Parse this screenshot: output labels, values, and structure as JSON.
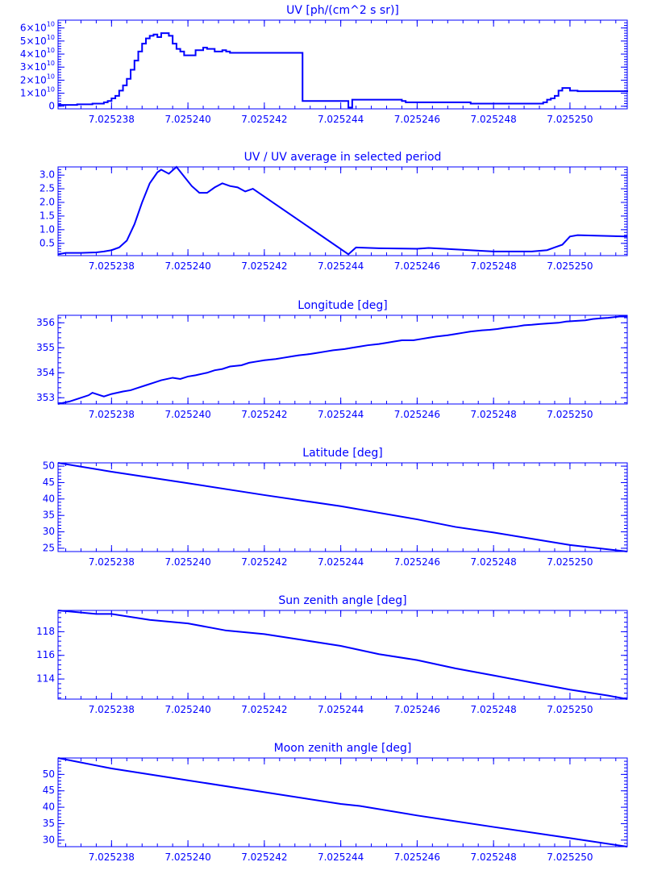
{
  "colors": {
    "line": "#0000ff",
    "background": "#ffffff"
  },
  "chart_data": [
    {
      "type": "line",
      "title": "UV [ph/(cm^2 s sr)]",
      "step": true,
      "xlim": [
        7.0252366,
        7.0252515
      ],
      "ylim": [
        -2000000000.0,
        66000000000.0
      ],
      "xticks": [
        7.025238,
        7.02524,
        7.025242,
        7.025244,
        7.025246,
        7.025248,
        7.02525
      ],
      "xtick_labels": [
        "7.025238",
        "7.025240",
        "7.025242",
        "7.025244",
        "7.025246",
        "7.025248",
        "7.025250"
      ],
      "yticks": [
        0,
        10000000000.0,
        20000000000.0,
        30000000000.0,
        40000000000.0,
        50000000000.0,
        60000000000.0
      ],
      "ytick_labels": [
        "0",
        "1×10¹⁰",
        "2×10¹⁰",
        "3×10¹⁰",
        "4×10¹⁰",
        "5×10¹⁰",
        "6×10¹⁰"
      ],
      "grid": false,
      "series": [
        {
          "x": [
            7.0252366,
            7.0252371,
            7.0252375,
            7.0252378,
            7.0252379,
            7.025238,
            7.0252381,
            7.0252382,
            7.0252383,
            7.0252384,
            7.0252385,
            7.0252386,
            7.0252387,
            7.0252388,
            7.0252389,
            7.025239,
            7.0252391,
            7.0252392,
            7.0252393,
            7.0252394,
            7.0252395,
            7.0252396,
            7.0252397,
            7.0252398,
            7.0252399,
            7.02524,
            7.0252401,
            7.0252402,
            7.0252403,
            7.0252404,
            7.0252405,
            7.0252407,
            7.0252409,
            7.025241,
            7.0252411,
            7.0252412,
            7.0252413,
            7.0252414,
            7.0252415,
            7.0252417,
            7.025243,
            7.0252442,
            7.0252443,
            7.0252456,
            7.0252457,
            7.0252474,
            7.0252491,
            7.0252493,
            7.0252494,
            7.0252495,
            7.0252496,
            7.0252497,
            7.0252498,
            7.02525,
            7.0252502,
            7.0252515
          ],
          "y": [
            1000000000.0,
            1500000000.0,
            2000000000.0,
            3000000000.0,
            4000000000.0,
            6000000000.0,
            8000000000.0,
            12000000000.0,
            16000000000.0,
            21000000000.0,
            28000000000.0,
            35000000000.0,
            42000000000.0,
            48000000000.0,
            52000000000.0,
            54000000000.0,
            55000000000.0,
            53000000000.0,
            56000000000.0,
            56000000000.0,
            54000000000.0,
            48000000000.0,
            44000000000.0,
            42000000000.0,
            39000000000.0,
            39000000000.0,
            39000000000.0,
            43000000000.0,
            43000000000.0,
            45000000000.0,
            44000000000.0,
            42000000000.0,
            43000000000.0,
            42000000000.0,
            41000000000.0,
            41000000000.0,
            41000000000.0,
            41000000000.0,
            41000000000.0,
            41000000000.0,
            4000000000.0,
            -1000000000.0,
            5000000000.0,
            4000000000.0,
            3000000000.0,
            2000000000.0,
            2000000000.0,
            3000000000.0,
            5000000000.0,
            6000000000.0,
            8000000000.0,
            12000000000.0,
            14000000000.0,
            12000000000.0,
            11500000000.0,
            11000000000.0
          ]
        }
      ]
    },
    {
      "type": "line",
      "title": "UV / UV average in selected period",
      "step": false,
      "xlim": [
        7.0252366,
        7.0252515
      ],
      "ylim": [
        0.05,
        3.3
      ],
      "xticks": [
        7.025238,
        7.02524,
        7.025242,
        7.025244,
        7.025246,
        7.025248,
        7.02525
      ],
      "xtick_labels": [
        "7.025238",
        "7.025240",
        "7.025242",
        "7.025244",
        "7.025246",
        "7.025248",
        "7.025250"
      ],
      "yticks": [
        0.5,
        1.0,
        1.5,
        2.0,
        2.5,
        3.0
      ],
      "ytick_labels": [
        "0.5",
        "1.0",
        "1.5",
        "2.0",
        "2.5",
        "3.0"
      ],
      "grid": false,
      "series": [
        {
          "x": [
            7.0252366,
            7.0252368,
            7.0252372,
            7.0252376,
            7.0252378,
            7.025238,
            7.0252382,
            7.0252384,
            7.0252386,
            7.0252388,
            7.025239,
            7.0252392,
            7.0252393,
            7.0252395,
            7.0252397,
            7.0252399,
            7.0252401,
            7.0252403,
            7.0252405,
            7.0252407,
            7.0252409,
            7.0252411,
            7.0252413,
            7.0252415,
            7.0252417,
            7.0252442,
            7.0252444,
            7.025245,
            7.025246,
            7.0252463,
            7.0252467,
            7.025248,
            7.025249,
            7.0252494,
            7.0252496,
            7.0252498,
            7.02525,
            7.0252502,
            7.0252515
          ],
          "y": [
            0.1,
            0.15,
            0.15,
            0.17,
            0.2,
            0.25,
            0.35,
            0.6,
            1.2,
            2.0,
            2.7,
            3.1,
            3.2,
            3.05,
            3.3,
            2.95,
            2.6,
            2.35,
            2.35,
            2.55,
            2.7,
            2.6,
            2.55,
            2.4,
            2.5,
            0.1,
            0.35,
            0.32,
            0.3,
            0.33,
            0.3,
            0.2,
            0.2,
            0.25,
            0.35,
            0.45,
            0.75,
            0.8,
            0.75
          ]
        }
      ]
    },
    {
      "type": "line",
      "title": "Longitude [deg]",
      "step": false,
      "xlim": [
        7.0252366,
        7.0252515
      ],
      "ylim": [
        352.75,
        356.3
      ],
      "xticks": [
        7.025238,
        7.02524,
        7.025242,
        7.025244,
        7.025246,
        7.025248,
        7.02525
      ],
      "xtick_labels": [
        "7.025238",
        "7.025240",
        "7.025242",
        "7.025244",
        "7.025246",
        "7.025248",
        "7.025250"
      ],
      "yticks": [
        353,
        354,
        355,
        356
      ],
      "ytick_labels": [
        "353",
        "354",
        "355",
        "356"
      ],
      "grid": false,
      "series": [
        {
          "x": [
            7.0252366,
            7.0252369,
            7.0252371,
            7.0252374,
            7.0252375,
            7.0252378,
            7.025238,
            7.0252383,
            7.0252385,
            7.0252387,
            7.0252389,
            7.0252391,
            7.0252393,
            7.0252396,
            7.0252398,
            7.02524,
            7.0252402,
            7.0252405,
            7.0252407,
            7.0252409,
            7.0252411,
            7.0252414,
            7.0252416,
            7.0252418,
            7.025242,
            7.0252423,
            7.0252425,
            7.0252427,
            7.0252429,
            7.0252432,
            7.0252434,
            7.0252436,
            7.0252438,
            7.0252441,
            7.0252443,
            7.0252445,
            7.0252447,
            7.025245,
            7.0252452,
            7.0252454,
            7.0252456,
            7.0252459,
            7.0252461,
            7.0252463,
            7.0252465,
            7.0252468,
            7.025247,
            7.0252472,
            7.0252474,
            7.0252477,
            7.0252479,
            7.0252481,
            7.0252483,
            7.0252486,
            7.0252488,
            7.025249,
            7.0252492,
            7.0252495,
            7.0252497,
            7.0252499,
            7.0252501,
            7.0252504,
            7.0252506,
            7.0252508,
            7.025251,
            7.0252513,
            7.0252515
          ],
          "y": [
            352.75,
            352.85,
            352.95,
            353.1,
            353.2,
            353.05,
            353.15,
            353.25,
            353.3,
            353.4,
            353.5,
            353.6,
            353.7,
            353.8,
            353.75,
            353.85,
            353.9,
            354.0,
            354.1,
            354.15,
            354.25,
            354.3,
            354.4,
            354.45,
            354.5,
            354.55,
            354.6,
            354.65,
            354.7,
            354.75,
            354.8,
            354.85,
            354.9,
            354.95,
            355.0,
            355.05,
            355.1,
            355.15,
            355.2,
            355.25,
            355.3,
            355.3,
            355.35,
            355.4,
            355.45,
            355.5,
            355.55,
            355.6,
            355.65,
            355.7,
            355.72,
            355.75,
            355.8,
            355.85,
            355.9,
            355.92,
            355.95,
            355.98,
            356.0,
            356.05,
            356.07,
            356.1,
            356.15,
            356.18,
            356.2,
            356.25,
            356.25
          ]
        }
      ]
    },
    {
      "type": "line",
      "title": "Latitude [deg]",
      "step": false,
      "xlim": [
        7.0252366,
        7.0252515
      ],
      "ylim": [
        24,
        51
      ],
      "xticks": [
        7.025238,
        7.02524,
        7.025242,
        7.025244,
        7.025246,
        7.025248,
        7.02525
      ],
      "xtick_labels": [
        "7.025238",
        "7.025240",
        "7.025242",
        "7.025244",
        "7.025246",
        "7.025248",
        "7.025250"
      ],
      "yticks": [
        25,
        30,
        35,
        40,
        45,
        50
      ],
      "ytick_labels": [
        "25",
        "30",
        "35",
        "40",
        "45",
        "50"
      ],
      "grid": false,
      "series": [
        {
          "x": [
            7.0252366,
            7.025238,
            7.02524,
            7.025242,
            7.025244,
            7.025245,
            7.025246,
            7.025247,
            7.025248,
            7.025249,
            7.02525,
            7.0252515
          ],
          "y": [
            51.0,
            48.3,
            44.8,
            41.2,
            37.8,
            35.8,
            33.8,
            31.5,
            29.8,
            27.9,
            26.0,
            24.0
          ]
        }
      ]
    },
    {
      "type": "line",
      "title": "Sun zenith angle [deg]",
      "step": false,
      "xlim": [
        7.0252366,
        7.0252515
      ],
      "ylim": [
        112.3,
        119.8
      ],
      "xticks": [
        7.025238,
        7.02524,
        7.025242,
        7.025244,
        7.025246,
        7.025248,
        7.02525
      ],
      "xtick_labels": [
        "7.025238",
        "7.025240",
        "7.025242",
        "7.025244",
        "7.025246",
        "7.025248",
        "7.025250"
      ],
      "yticks": [
        114,
        116,
        118
      ],
      "ytick_labels": [
        "114",
        "116",
        "118"
      ],
      "grid": false,
      "series": [
        {
          "x": [
            7.0252366,
            7.0252376,
            7.025238,
            7.025239,
            7.02524,
            7.025241,
            7.025242,
            7.025243,
            7.025244,
            7.025245,
            7.025246,
            7.025247,
            7.025248,
            7.025249,
            7.02525,
            7.025251,
            7.0252515
          ],
          "y": [
            119.8,
            119.5,
            119.5,
            119.0,
            118.7,
            118.1,
            117.8,
            117.3,
            116.8,
            116.1,
            115.6,
            114.9,
            114.3,
            113.7,
            113.1,
            112.6,
            112.3
          ]
        }
      ]
    },
    {
      "type": "line",
      "title": "Moon zenith angle [deg]",
      "step": false,
      "xlim": [
        7.0252366,
        7.0252515
      ],
      "ylim": [
        28,
        55
      ],
      "xticks": [
        7.025238,
        7.02524,
        7.025242,
        7.025244,
        7.025246,
        7.025248,
        7.02525
      ],
      "xtick_labels": [
        "7.025238",
        "7.025240",
        "7.025242",
        "7.025244",
        "7.025246",
        "7.025248",
        "7.025250"
      ],
      "yticks": [
        30,
        35,
        40,
        45,
        50
      ],
      "ytick_labels": [
        "30",
        "35",
        "40",
        "45",
        "50"
      ],
      "grid": false,
      "series": [
        {
          "x": [
            7.0252366,
            7.025238,
            7.02524,
            7.025242,
            7.025244,
            7.0252445,
            7.025246,
            7.025248,
            7.02525,
            7.0252515
          ],
          "y": [
            55.0,
            51.8,
            48.2,
            44.6,
            41.0,
            40.4,
            37.5,
            34.0,
            30.6,
            28.0
          ]
        }
      ]
    }
  ]
}
